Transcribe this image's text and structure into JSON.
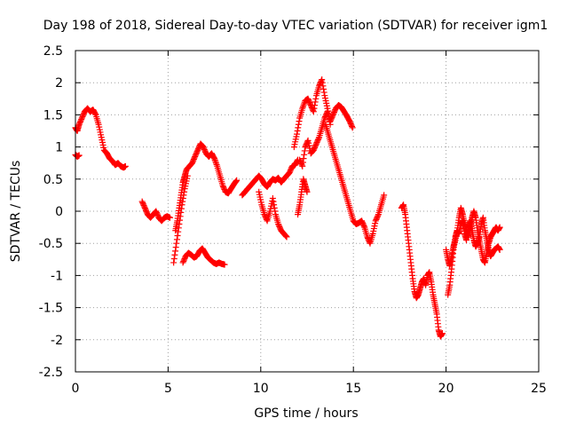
{
  "chart_data": {
    "type": "scatter",
    "title": "Day 198 of 2018, Sidereal Day-to-day VTEC variation (SDTVAR) for receiver igm1",
    "xlabel": "GPS time / hours",
    "ylabel": "SDTVAR / TECUs",
    "xlim": [
      0,
      25
    ],
    "ylim": [
      -2.5,
      2.5
    ],
    "xticks": [
      0,
      5,
      10,
      15,
      20,
      25
    ],
    "xtick_labels": [
      "0",
      "5",
      "10",
      "15",
      "20",
      "25"
    ],
    "yticks": [
      -2.5,
      -2,
      -1.5,
      -1,
      -0.5,
      0,
      0.5,
      1,
      1.5,
      2,
      2.5
    ],
    "ytick_labels": [
      "-2.5",
      "-2",
      "-1.5",
      "-1",
      "-0.5",
      "0",
      "0.5",
      "1",
      "1.5",
      "2",
      "2.5"
    ],
    "grid": true,
    "marker": "plus",
    "color": "#ff0000",
    "series": [
      {
        "name": "trace-1",
        "x": [
          0.0,
          0.1,
          0.2,
          0.35,
          0.5,
          0.65,
          0.8,
          0.95,
          1.1,
          1.25,
          1.4,
          1.55,
          1.7,
          1.85,
          2.0,
          2.15,
          2.3,
          2.45,
          2.6,
          2.7
        ],
        "y": [
          1.3,
          1.25,
          1.35,
          1.45,
          1.55,
          1.6,
          1.55,
          1.58,
          1.5,
          1.35,
          1.15,
          0.95,
          0.9,
          0.82,
          0.78,
          0.72,
          0.75,
          0.7,
          0.68,
          0.7
        ]
      },
      {
        "name": "trace-2",
        "x": [
          0.0,
          0.1,
          0.2
        ],
        "y": [
          0.88,
          0.85,
          0.87
        ]
      },
      {
        "name": "trace-3",
        "x": [
          3.6,
          3.75,
          3.9,
          4.05,
          4.2,
          4.35,
          4.5,
          4.65,
          4.8,
          4.95,
          5.1
        ],
        "y": [
          0.15,
          0.05,
          -0.05,
          -0.1,
          -0.05,
          0.0,
          -0.1,
          -0.15,
          -0.1,
          -0.08,
          -0.1
        ]
      },
      {
        "name": "trace-4",
        "x": [
          5.4,
          5.5,
          5.6,
          5.7,
          5.8,
          5.9,
          6.0,
          6.15,
          6.3,
          6.45,
          6.6,
          6.75,
          6.9,
          7.05,
          7.2,
          7.35,
          7.5,
          7.65,
          7.8,
          7.95,
          8.1,
          8.25,
          8.4,
          8.55,
          8.7
        ],
        "y": [
          -0.3,
          -0.15,
          0.05,
          0.25,
          0.45,
          0.55,
          0.65,
          0.7,
          0.75,
          0.85,
          0.95,
          1.05,
          1.0,
          0.9,
          0.85,
          0.9,
          0.82,
          0.7,
          0.55,
          0.4,
          0.3,
          0.28,
          0.35,
          0.42,
          0.48
        ]
      },
      {
        "name": "trace-5",
        "x": [
          5.3,
          5.45,
          5.6,
          5.75,
          5.9,
          6.05
        ],
        "y": [
          -0.8,
          -0.5,
          -0.2,
          0.1,
          0.35,
          0.55
        ]
      },
      {
        "name": "trace-6",
        "x": [
          5.8,
          5.95,
          6.1,
          6.25,
          6.4,
          6.55,
          6.7,
          6.85,
          7.0,
          7.15,
          7.3,
          7.45,
          7.6,
          7.75,
          7.9,
          8.05
        ],
        "y": [
          -0.8,
          -0.7,
          -0.65,
          -0.68,
          -0.72,
          -0.7,
          -0.62,
          -0.58,
          -0.65,
          -0.72,
          -0.76,
          -0.8,
          -0.82,
          -0.8,
          -0.82,
          -0.83
        ]
      },
      {
        "name": "trace-7",
        "x": [
          9.0,
          9.15,
          9.3,
          9.45,
          9.6,
          9.75,
          9.9,
          10.05,
          10.2,
          10.35,
          10.5,
          10.65,
          10.8,
          10.95,
          11.1,
          11.25,
          11.4,
          11.55,
          11.7,
          11.85,
          12.0
        ],
        "y": [
          0.25,
          0.3,
          0.35,
          0.4,
          0.45,
          0.5,
          0.55,
          0.5,
          0.42,
          0.38,
          0.45,
          0.5,
          0.48,
          0.52,
          0.45,
          0.5,
          0.55,
          0.6,
          0.7,
          0.72,
          0.8
        ]
      },
      {
        "name": "trace-8",
        "x": [
          9.9,
          10.05,
          10.2,
          10.35,
          10.5,
          10.65,
          10.8,
          10.95,
          11.1,
          11.25,
          11.4
        ],
        "y": [
          0.3,
          0.1,
          -0.05,
          -0.15,
          0.0,
          0.2,
          -0.05,
          -0.2,
          -0.3,
          -0.35,
          -0.4
        ]
      },
      {
        "name": "trace-9",
        "x": [
          11.8,
          11.95,
          12.1,
          12.25,
          12.4,
          12.55,
          12.7,
          12.85,
          13.0,
          13.15,
          13.3,
          13.45,
          13.6,
          13.75,
          13.9,
          14.05,
          14.2,
          14.35,
          14.5,
          14.65,
          14.8,
          14.95
        ],
        "y": [
          1.0,
          1.2,
          1.45,
          1.6,
          1.72,
          1.75,
          1.65,
          1.55,
          1.8,
          1.95,
          2.05,
          1.8,
          1.6,
          1.4,
          1.5,
          1.6,
          1.65,
          1.62,
          1.55,
          1.48,
          1.4,
          1.3
        ]
      },
      {
        "name": "trace-10",
        "x": [
          12.1,
          12.25,
          12.4,
          12.55,
          12.7,
          12.85,
          13.0,
          13.15,
          13.3,
          13.45,
          13.6,
          13.75
        ],
        "y": [
          0.8,
          0.7,
          1.0,
          1.1,
          0.9,
          0.95,
          1.05,
          1.15,
          1.3,
          1.45,
          1.55,
          1.35
        ]
      },
      {
        "name": "trace-11",
        "x": [
          12.0,
          12.1,
          12.2,
          12.3,
          12.4,
          12.5
        ],
        "y": [
          -0.05,
          0.1,
          0.3,
          0.5,
          0.4,
          0.3
        ]
      },
      {
        "name": "trace-12",
        "x": [
          13.5,
          13.65,
          13.8,
          13.95,
          14.1,
          14.25,
          14.4,
          14.55,
          14.7,
          14.85,
          15.0,
          15.15,
          15.3,
          15.45,
          15.6,
          15.75,
          15.9,
          16.05,
          16.2,
          16.35,
          16.5,
          16.65
        ],
        "y": [
          1.35,
          1.2,
          1.05,
          0.9,
          0.75,
          0.6,
          0.45,
          0.3,
          0.15,
          0.0,
          -0.15,
          -0.2,
          -0.18,
          -0.15,
          -0.25,
          -0.4,
          -0.5,
          -0.35,
          -0.15,
          -0.05,
          0.1,
          0.25
        ]
      },
      {
        "name": "trace-13",
        "x": [
          17.6,
          17.7,
          17.8,
          17.9,
          18.0,
          18.1,
          18.2,
          18.3,
          18.4,
          18.5,
          18.6,
          18.7,
          18.8,
          18.9,
          19.0,
          19.1,
          19.2,
          19.3,
          19.4,
          19.5,
          19.6,
          19.7,
          19.8
        ],
        "y": [
          0.05,
          0.1,
          -0.05,
          -0.3,
          -0.55,
          -0.8,
          -1.05,
          -1.25,
          -1.35,
          -1.3,
          -1.2,
          -1.1,
          -1.05,
          -1.15,
          -1.0,
          -0.95,
          -1.1,
          -1.3,
          -1.45,
          -1.6,
          -1.85,
          -1.95,
          -1.9
        ]
      },
      {
        "name": "trace-14",
        "x": [
          20.0,
          20.1,
          20.2,
          20.3,
          20.4,
          20.5,
          20.6,
          20.7,
          20.8,
          20.9,
          21.0,
          21.1,
          21.2,
          21.3,
          21.4,
          21.5,
          21.6,
          21.7,
          21.8,
          21.9,
          22.0,
          22.1,
          22.2,
          22.3,
          22.4,
          22.5,
          22.6,
          22.7,
          22.8,
          22.9
        ],
        "y": [
          -0.6,
          -0.75,
          -0.85,
          -0.7,
          -0.55,
          -0.45,
          -0.3,
          -0.1,
          0.05,
          -0.05,
          -0.2,
          -0.3,
          -0.4,
          -0.25,
          -0.1,
          0.0,
          -0.1,
          -0.3,
          -0.45,
          -0.6,
          -0.75,
          -0.8,
          -0.65,
          -0.5,
          -0.4,
          -0.35,
          -0.3,
          -0.25,
          -0.3,
          -0.25
        ]
      },
      {
        "name": "trace-15",
        "x": [
          20.1,
          20.2,
          20.3,
          20.4,
          20.5,
          20.6,
          20.7,
          20.8,
          20.9,
          21.0,
          21.1,
          21.2,
          21.3,
          21.4,
          21.5,
          21.6,
          21.7,
          21.8,
          21.9,
          22.0,
          22.1,
          22.2,
          22.3,
          22.4,
          22.5,
          22.6,
          22.7,
          22.8,
          22.9
        ],
        "y": [
          -1.3,
          -1.15,
          -0.9,
          -0.6,
          -0.4,
          -0.3,
          -0.35,
          -0.2,
          -0.15,
          -0.35,
          -0.45,
          -0.25,
          -0.15,
          -0.3,
          -0.45,
          -0.55,
          -0.5,
          -0.4,
          -0.2,
          -0.1,
          -0.3,
          -0.45,
          -0.6,
          -0.7,
          -0.65,
          -0.6,
          -0.58,
          -0.55,
          -0.6
        ]
      }
    ]
  }
}
